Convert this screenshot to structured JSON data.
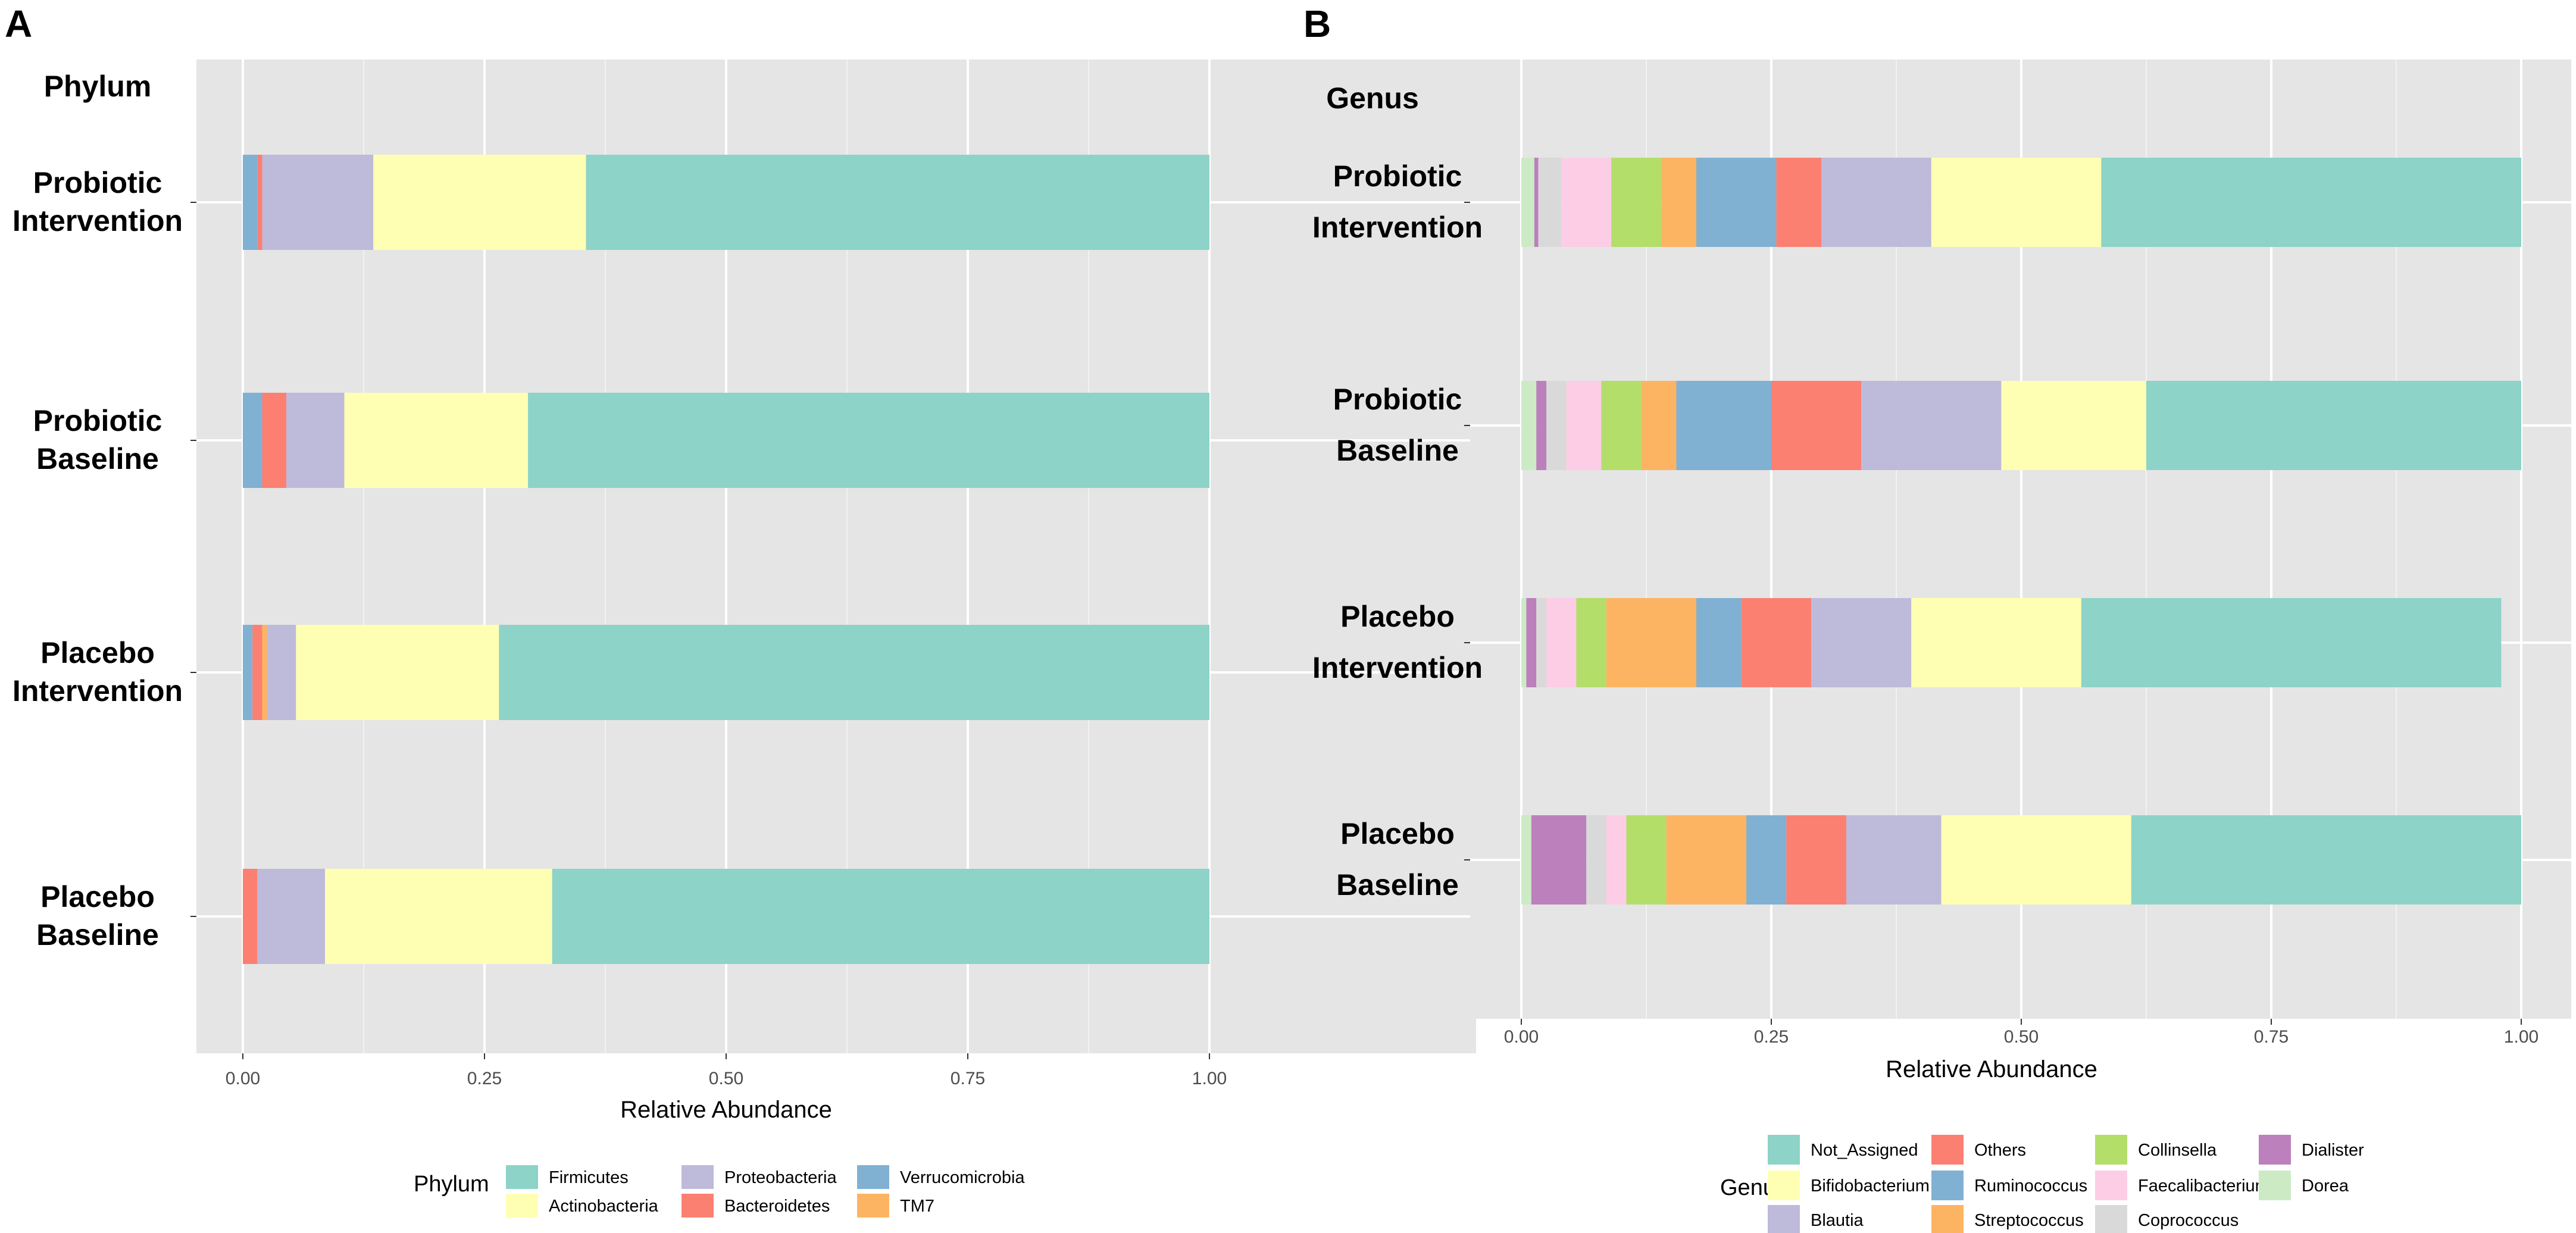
{
  "chart_data": [
    {
      "panel": "A",
      "type": "bar",
      "orientation": "horizontal",
      "stacked": true,
      "group_label": "Phylum",
      "categories": [
        [
          "Probiotic",
          "Intervention"
        ],
        [
          "Probiotic",
          "Baseline"
        ],
        [
          "Placebo",
          "Intervention"
        ],
        [
          "Placebo",
          "Baseline"
        ]
      ],
      "series": [
        {
          "name": "Verrucomicrobia",
          "color": "#80b1d3",
          "values": [
            0.015,
            0.02,
            0.01,
            0.0
          ]
        },
        {
          "name": "Bacteroidetes",
          "color": "#fb8072",
          "values": [
            0.005,
            0.025,
            0.01,
            0.015
          ]
        },
        {
          "name": "TM7",
          "color": "#fdb462",
          "values": [
            0.0,
            0.0,
            0.005,
            0.0
          ]
        },
        {
          "name": "Proteobacteria",
          "color": "#bebada",
          "values": [
            0.115,
            0.06,
            0.03,
            0.07
          ]
        },
        {
          "name": "Actinobacteria",
          "color": "#ffffb3",
          "values": [
            0.22,
            0.19,
            0.21,
            0.235
          ]
        },
        {
          "name": "Firmicutes",
          "color": "#8dd3c7",
          "values": [
            0.645,
            0.705,
            0.735,
            0.68
          ]
        }
      ],
      "xlabel": "Relative Abundance",
      "xlim": [
        0,
        1
      ],
      "xticks": [
        "0.00",
        "0.25",
        "0.50",
        "0.75",
        "1.00"
      ],
      "legend": {
        "title": "Phylum",
        "placement": "bottom",
        "columns": [
          [
            "Firmicutes",
            "Actinobacteria"
          ],
          [
            "Proteobacteria",
            "Bacteroidetes"
          ],
          [
            "Verrucomicrobia",
            "TM7"
          ]
        ]
      }
    },
    {
      "panel": "B",
      "type": "bar",
      "orientation": "horizontal",
      "stacked": true,
      "group_label": "Genus",
      "categories": [
        [
          "Probiotic",
          "Intervention"
        ],
        [
          "Probiotic",
          "Baseline"
        ],
        [
          "Placebo",
          "Intervention"
        ],
        [
          "Placebo",
          "Baseline"
        ]
      ],
      "series": [
        {
          "name": "Dorea",
          "color": "#ccebc5",
          "values": [
            0.013,
            0.015,
            0.005,
            0.01
          ]
        },
        {
          "name": "Dialister",
          "color": "#bc80bd",
          "values": [
            0.004,
            0.01,
            0.01,
            0.055
          ]
        },
        {
          "name": "Coprococcus",
          "color": "#d9d9d9",
          "values": [
            0.023,
            0.02,
            0.01,
            0.02
          ]
        },
        {
          "name": "Faecalibacterium",
          "color": "#fccde5",
          "values": [
            0.05,
            0.035,
            0.03,
            0.02
          ]
        },
        {
          "name": "Collinsella",
          "color": "#b3de69",
          "values": [
            0.05,
            0.04,
            0.03,
            0.04
          ]
        },
        {
          "name": "Streptococcus",
          "color": "#fdb462",
          "values": [
            0.035,
            0.035,
            0.09,
            0.08
          ]
        },
        {
          "name": "Ruminococcus",
          "color": "#80b1d3",
          "values": [
            0.08,
            0.095,
            0.045,
            0.04
          ]
        },
        {
          "name": "Others",
          "color": "#fb8072",
          "values": [
            0.045,
            0.09,
            0.07,
            0.06
          ]
        },
        {
          "name": "Blautia",
          "color": "#bebada",
          "values": [
            0.11,
            0.14,
            0.1,
            0.095
          ]
        },
        {
          "name": "Bifidobacterium",
          "color": "#ffffb3",
          "values": [
            0.17,
            0.145,
            0.17,
            0.19
          ]
        },
        {
          "name": "Not_Assigned",
          "color": "#8dd3c7",
          "values": [
            0.42,
            0.375,
            0.42,
            0.39
          ]
        }
      ],
      "xlabel": "Relative Abundance",
      "xlim": [
        0,
        1
      ],
      "xticks": [
        "0.00",
        "0.25",
        "0.50",
        "0.75",
        "1.00"
      ],
      "legend": {
        "title": "Genus",
        "placement": "bottom",
        "columns": [
          [
            "Not_Assigned",
            "Bifidobacterium",
            "Blautia"
          ],
          [
            "Others",
            "Ruminococcus",
            "Streptococcus"
          ],
          [
            "Collinsella",
            "Faecalibacterium",
            "Coprococcus"
          ],
          [
            "Dialister",
            "Dorea"
          ]
        ]
      }
    }
  ]
}
